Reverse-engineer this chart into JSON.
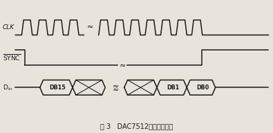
{
  "title": "图 3   DAC7512的写操作时序",
  "clk_label": "CLK",
  "sync_label": "SYNC",
  "line_color": "#1a1a1a",
  "bg_color": "#e8e4dc",
  "fig_width": 3.95,
  "fig_height": 1.92,
  "dpi": 100
}
